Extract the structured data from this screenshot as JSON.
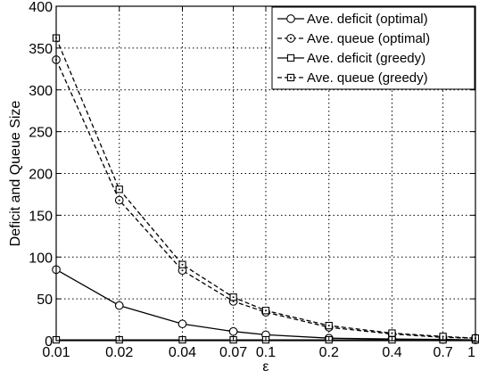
{
  "chart_data": {
    "type": "line",
    "title": "",
    "xlabel": "ε",
    "ylabel": "Deficit and Queue Size",
    "xscale": "log",
    "xlim": [
      0.01,
      1
    ],
    "ylim": [
      0,
      400
    ],
    "grid": true,
    "legend_position": "top-right",
    "x": [
      0.01,
      0.02,
      0.04,
      0.07,
      0.1,
      0.2,
      0.4,
      0.7,
      1
    ],
    "x_tick_labels": [
      "0.01",
      "0.02",
      "0.04",
      "0.07",
      "0.1",
      "0.2",
      "0.4",
      "0.7",
      "1"
    ],
    "y_ticks": [
      0,
      50,
      100,
      150,
      200,
      250,
      300,
      350,
      400
    ],
    "y_tick_labels": [
      "0",
      "50",
      "100",
      "150",
      "200",
      "250",
      "300",
      "350",
      "400"
    ],
    "series": [
      {
        "name": "Ave. deficit (optimal)",
        "line_style": "solid",
        "marker": "circle",
        "values": [
          85,
          42,
          20,
          11,
          7,
          3,
          2,
          1.5,
          1
        ]
      },
      {
        "name": "Ave. queue (optimal)",
        "line_style": "dashed",
        "marker": "circle-dot",
        "values": [
          336,
          168,
          84,
          47,
          34,
          16,
          8,
          4,
          3
        ]
      },
      {
        "name": "Ave. deficit (greedy)",
        "line_style": "solid",
        "marker": "square",
        "values": [
          1,
          1,
          1,
          1,
          1,
          1,
          1,
          1,
          1
        ]
      },
      {
        "name": "Ave. queue (greedy)",
        "line_style": "dashed",
        "marker": "square-dot",
        "values": [
          362,
          181,
          91,
          52,
          36,
          18,
          9,
          5,
          3
        ]
      }
    ]
  }
}
